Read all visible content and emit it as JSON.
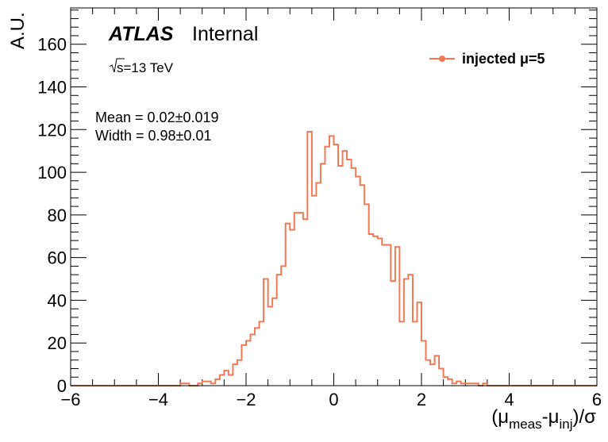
{
  "chart_data": {
    "type": "histogram",
    "color": "#ef7a55",
    "xlim": [
      -6,
      6
    ],
    "ylim": [
      0,
      177
    ],
    "x_ticks": [
      -6,
      -4,
      -2,
      0,
      2,
      4,
      6
    ],
    "x_tick_labels": [
      "−6",
      "−4",
      "−2",
      "0",
      "2",
      "4",
      "6"
    ],
    "y_ticks": [
      0,
      20,
      40,
      60,
      80,
      100,
      120,
      140,
      160
    ],
    "y_tick_labels": [
      "0",
      "20",
      "40",
      "60",
      "80",
      "100",
      "120",
      "140",
      "160"
    ],
    "ylabel": "A.U.",
    "xlabel": {
      "open": "(μ",
      "sub1": "meas",
      "mid": "-μ",
      "sub2": "inj",
      "close": ")/σ"
    },
    "atlas_label": "ATLAS",
    "atlas_status": "Internal",
    "energy_label": {
      "root": "s",
      "rest": "=13 TeV"
    },
    "stats": {
      "mean": "Mean = 0.02±0.019",
      "width": "Width = 0.98±0.01"
    },
    "legend_entries": [
      "injected μ=5"
    ],
    "legend_position": "top-right",
    "series": [
      {
        "name": "injected μ=5",
        "bin_edges_start": -6,
        "bin_width": 0.1,
        "values": [
          0,
          0,
          0,
          0,
          0,
          0,
          0,
          0,
          0,
          0,
          0,
          0,
          0,
          0,
          0,
          0,
          0,
          0,
          0,
          0,
          0,
          0,
          0,
          0,
          0,
          1,
          1,
          0,
          0,
          1,
          2,
          2,
          1,
          3,
          5,
          7,
          5,
          10,
          12,
          19,
          21,
          24,
          27,
          30,
          50,
          37,
          41,
          52,
          56,
          76,
          73,
          81,
          81,
          78,
          119,
          89,
          95,
          104,
          112,
          117,
          113,
          103,
          110,
          106,
          102,
          98,
          94,
          85,
          71,
          70,
          69,
          66,
          66,
          49,
          65,
          30,
          50,
          52,
          30,
          39,
          21,
          12,
          10,
          14,
          8,
          4,
          3,
          1,
          2,
          1,
          1,
          1,
          1,
          0,
          1,
          0,
          0,
          0,
          0,
          0,
          0,
          0,
          0,
          0,
          0,
          0,
          0,
          0,
          0,
          0,
          0,
          0,
          0,
          0,
          0,
          0,
          0,
          0,
          0,
          0
        ]
      }
    ]
  }
}
